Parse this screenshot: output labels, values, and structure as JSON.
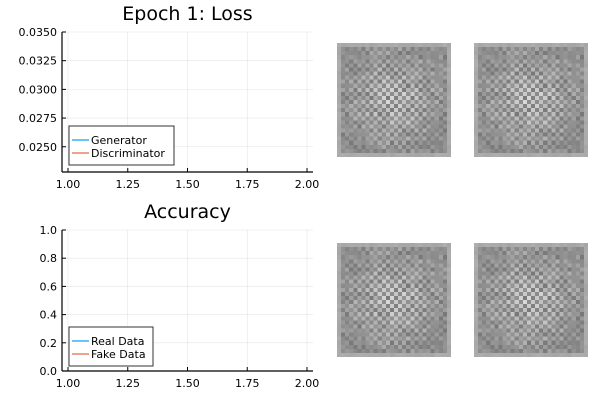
{
  "chart_data": [
    {
      "type": "line",
      "title": "Epoch 1: Loss",
      "xlim": [
        1.0,
        2.0
      ],
      "ylim": [
        0.0228,
        0.035
      ],
      "xticks": [
        "1.00",
        "1.25",
        "1.50",
        "1.75",
        "2.00"
      ],
      "xtick_values": [
        1.0,
        1.25,
        1.5,
        1.75,
        2.0
      ],
      "yticks": [
        "0.0250",
        "0.0275",
        "0.0300",
        "0.0325",
        "0.0350"
      ],
      "ytick_values": [
        0.025,
        0.0275,
        0.03,
        0.0325,
        0.035
      ],
      "grid": true,
      "legend_position": "bottom-left",
      "series": [
        {
          "name": "Generator",
          "color": "#6ac4f5",
          "x": [],
          "y": []
        },
        {
          "name": "Discriminator",
          "color": "#eba58c",
          "x": [],
          "y": []
        }
      ]
    },
    {
      "type": "line",
      "title": "Accuracy",
      "xlim": [
        1.0,
        2.0
      ],
      "ylim": [
        0.0,
        1.0
      ],
      "xticks": [
        "1.00",
        "1.25",
        "1.50",
        "1.75",
        "2.00"
      ],
      "xtick_values": [
        1.0,
        1.25,
        1.5,
        1.75,
        2.0
      ],
      "yticks": [
        "0.0",
        "0.2",
        "0.4",
        "0.6",
        "0.8",
        "1.0"
      ],
      "ytick_values": [
        0,
        0.2,
        0.4,
        0.6,
        0.8,
        1.0
      ],
      "grid": true,
      "legend_position": "bottom-left",
      "series": [
        {
          "name": "Real Data",
          "color": "#6ac4f5",
          "x": [],
          "y": []
        },
        {
          "name": "Fake Data",
          "color": "#eba58c",
          "x": [],
          "y": []
        }
      ]
    }
  ],
  "generated_images": {
    "count": 4,
    "resolution": 28
  }
}
